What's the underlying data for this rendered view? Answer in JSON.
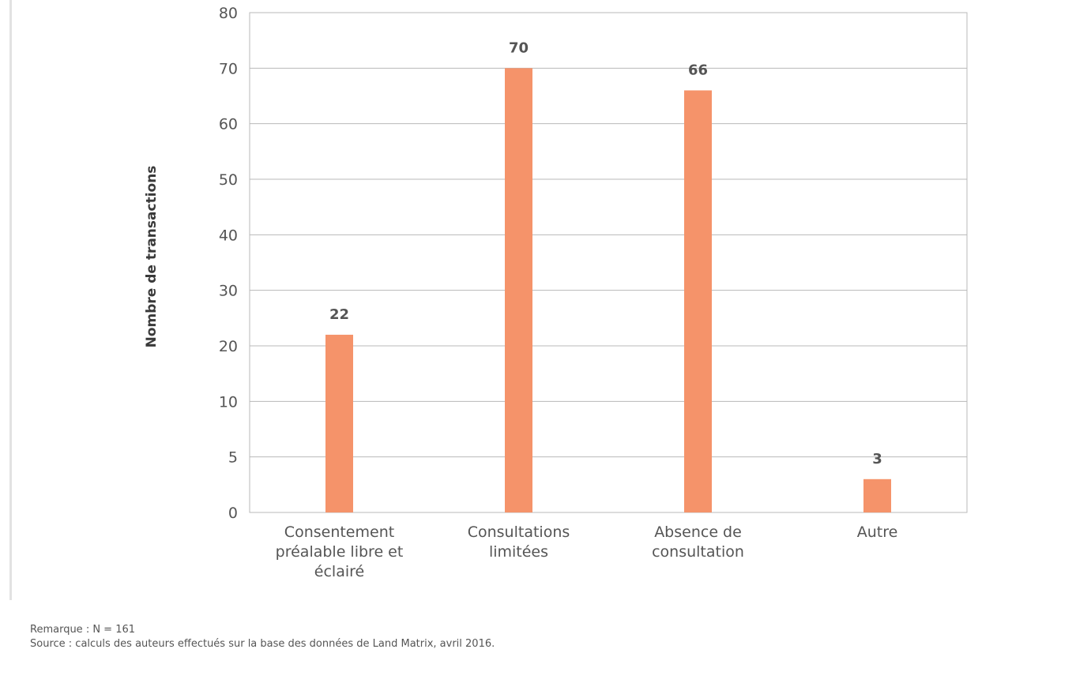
{
  "chart_data": {
    "type": "bar",
    "categories": [
      [
        "Consentement",
        "préalable libre et",
        "éclairé"
      ],
      [
        "Consultations",
        "limitées"
      ],
      [
        "Absence de",
        "consultation"
      ],
      [
        "Autre"
      ]
    ],
    "values": [
      22,
      70,
      66,
      3
    ],
    "data_labels": [
      "22",
      "70",
      "66",
      "3"
    ],
    "ylabel": "Nombre de transactions",
    "yticks": [
      0,
      5,
      10,
      20,
      30,
      40,
      50,
      60,
      70,
      80
    ],
    "ylim": [
      0,
      80
    ],
    "grid": true,
    "bar_color": "#f5936a",
    "grid_color": "#b8b8b8"
  },
  "notes": {
    "remark": "Remarque : N = 161",
    "source": "Source : calculs des auteurs effectués sur la base des données de Land Matrix, avril 2016."
  }
}
